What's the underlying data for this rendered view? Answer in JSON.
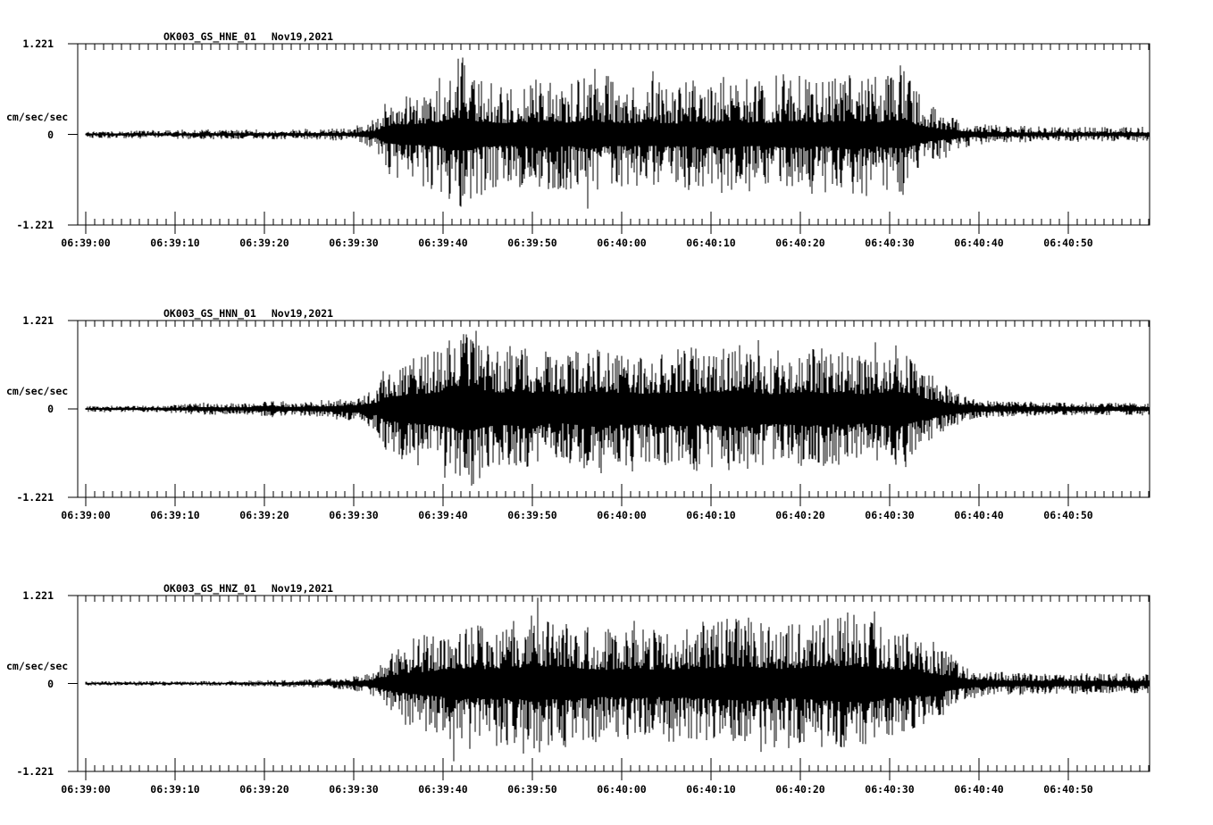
{
  "figure": {
    "background": "#ffffff",
    "ink": "#000000"
  },
  "chart_data": {
    "type": "line",
    "subtype": "seismogram-3-panel",
    "grid": false,
    "legend": "none",
    "y_axis": {
      "unit_label": "cm/sec/sec",
      "max_label": "1.221",
      "zero_label": "0",
      "min_label": "-1.221",
      "max_value": 1.221
    },
    "time_axis": {
      "major_tick_seconds": 10,
      "minor_tick_seconds": 1,
      "duration_seconds": 119,
      "tick_labels": [
        "06:39:00",
        "06:39:10",
        "06:39:20",
        "06:39:30",
        "06:39:40",
        "06:39:50",
        "06:40:00",
        "06:40:10",
        "06:40:20",
        "06:40:30",
        "06:40:40",
        "06:40:50"
      ]
    },
    "panels": [
      {
        "station_channel": "OK003_GS_HNE_01",
        "date": "Nov19,2021",
        "seed": 7,
        "texture": {
          "body_min": 0.22,
          "body_pow": 2.1,
          "spike_prob": 0.04
        },
        "envelope": [
          [
            0,
            0.05
          ],
          [
            10,
            0.055
          ],
          [
            14,
            0.07
          ],
          [
            17,
            0.06
          ],
          [
            20,
            0.07
          ],
          [
            23,
            0.065
          ],
          [
            26,
            0.075
          ],
          [
            29,
            0.09
          ],
          [
            31,
            0.12
          ],
          [
            32.5,
            0.22
          ],
          [
            33.5,
            0.5
          ],
          [
            35,
            0.62
          ],
          [
            37,
            0.6
          ],
          [
            39,
            0.7
          ],
          [
            41,
            0.95
          ],
          [
            42.5,
            1.0
          ],
          [
            44,
            0.78
          ],
          [
            47,
            0.68
          ],
          [
            50,
            0.75
          ],
          [
            52,
            0.8
          ],
          [
            54,
            0.7
          ],
          [
            56,
            0.88
          ],
          [
            58,
            0.75
          ],
          [
            61,
            0.68
          ],
          [
            63,
            0.72
          ],
          [
            66,
            0.65
          ],
          [
            68,
            0.78
          ],
          [
            70,
            0.72
          ],
          [
            72,
            0.85
          ],
          [
            74,
            0.72
          ],
          [
            76,
            0.68
          ],
          [
            78,
            0.75
          ],
          [
            80,
            0.82
          ],
          [
            82,
            0.72
          ],
          [
            84,
            0.75
          ],
          [
            86,
            0.88
          ],
          [
            88,
            0.72
          ],
          [
            90,
            0.8
          ],
          [
            91.5,
            0.88
          ],
          [
            93,
            0.6
          ],
          [
            94.5,
            0.42
          ],
          [
            96,
            0.3
          ],
          [
            98,
            0.2
          ],
          [
            100,
            0.14
          ],
          [
            103,
            0.11
          ],
          [
            107,
            0.1
          ],
          [
            119,
            0.095
          ]
        ],
        "spikes": [
          [
            41.7,
            1.02
          ],
          [
            41.9,
            -0.93
          ],
          [
            56.2,
            -1.0
          ],
          [
            63.5,
            0.85
          ],
          [
            91.2,
            0.93
          ]
        ]
      },
      {
        "station_channel": "OK003_GS_HNN_01",
        "date": "Nov19,2021",
        "seed": 23,
        "texture": {
          "body_min": 0.28,
          "body_pow": 1.8,
          "spike_prob": 0.05
        },
        "envelope": [
          [
            0,
            0.04
          ],
          [
            8,
            0.045
          ],
          [
            11,
            0.06
          ],
          [
            13,
            0.09
          ],
          [
            15,
            0.07
          ],
          [
            18,
            0.08
          ],
          [
            21,
            0.11
          ],
          [
            23,
            0.09
          ],
          [
            25,
            0.1
          ],
          [
            27,
            0.12
          ],
          [
            29,
            0.15
          ],
          [
            31,
            0.2
          ],
          [
            32.5,
            0.3
          ],
          [
            33.5,
            0.55
          ],
          [
            36,
            0.7
          ],
          [
            38,
            0.75
          ],
          [
            40,
            0.85
          ],
          [
            42,
            1.0
          ],
          [
            43.5,
            1.05
          ],
          [
            45,
            0.85
          ],
          [
            47,
            0.8
          ],
          [
            49,
            0.85
          ],
          [
            51,
            0.75
          ],
          [
            53,
            0.7
          ],
          [
            55,
            0.78
          ],
          [
            57,
            0.85
          ],
          [
            59,
            0.75
          ],
          [
            61,
            0.8
          ],
          [
            63,
            0.72
          ],
          [
            65,
            0.78
          ],
          [
            67,
            0.85
          ],
          [
            69,
            0.75
          ],
          [
            71,
            0.82
          ],
          [
            73,
            0.9
          ],
          [
            75,
            0.78
          ],
          [
            77,
            0.72
          ],
          [
            79,
            0.78
          ],
          [
            81,
            0.85
          ],
          [
            83,
            0.75
          ],
          [
            85,
            0.8
          ],
          [
            87,
            0.72
          ],
          [
            89,
            0.78
          ],
          [
            91,
            0.82
          ],
          [
            92.5,
            0.68
          ],
          [
            94,
            0.5
          ],
          [
            96,
            0.32
          ],
          [
            98,
            0.2
          ],
          [
            100,
            0.13
          ],
          [
            104,
            0.1
          ],
          [
            108,
            0.09
          ],
          [
            119,
            0.085
          ]
        ],
        "spikes": [
          [
            40.2,
            -0.95
          ],
          [
            42.6,
            1.03
          ],
          [
            43.2,
            -1.06
          ],
          [
            75.3,
            0.95
          ],
          [
            88.4,
            0.92
          ]
        ]
      },
      {
        "station_channel": "OK003_GS_HNZ_01",
        "date": "Nov19,2021",
        "seed": 41,
        "texture": {
          "body_min": 0.25,
          "body_pow": 1.9,
          "spike_prob": 0.045
        },
        "envelope": [
          [
            0,
            0.03
          ],
          [
            10,
            0.032
          ],
          [
            15,
            0.035
          ],
          [
            20,
            0.045
          ],
          [
            24,
            0.055
          ],
          [
            27,
            0.07
          ],
          [
            30,
            0.1
          ],
          [
            32,
            0.18
          ],
          [
            33.5,
            0.35
          ],
          [
            35,
            0.5
          ],
          [
            37,
            0.6
          ],
          [
            39,
            0.68
          ],
          [
            41,
            0.8
          ],
          [
            43,
            0.85
          ],
          [
            45,
            0.78
          ],
          [
            47,
            0.8
          ],
          [
            49,
            0.9
          ],
          [
            50.5,
            1.0
          ],
          [
            52,
            0.85
          ],
          [
            54,
            0.9
          ],
          [
            56,
            0.8
          ],
          [
            58,
            0.75
          ],
          [
            60,
            0.78
          ],
          [
            62,
            0.82
          ],
          [
            64,
            0.75
          ],
          [
            66,
            0.78
          ],
          [
            68,
            0.8
          ],
          [
            70,
            0.85
          ],
          [
            72,
            0.9
          ],
          [
            74,
            0.95
          ],
          [
            76,
            0.85
          ],
          [
            78,
            0.8
          ],
          [
            80,
            0.85
          ],
          [
            82,
            0.9
          ],
          [
            84,
            0.95
          ],
          [
            86,
            1.0
          ],
          [
            88,
            0.85
          ],
          [
            90,
            0.8
          ],
          [
            92,
            0.72
          ],
          [
            94,
            0.6
          ],
          [
            96,
            0.45
          ],
          [
            97.5,
            0.32
          ],
          [
            99,
            0.22
          ],
          [
            101,
            0.17
          ],
          [
            104,
            0.15
          ],
          [
            110,
            0.14
          ],
          [
            119,
            0.135
          ]
        ],
        "spikes": [
          [
            41.2,
            -1.08
          ],
          [
            50.2,
            -0.9
          ],
          [
            50.6,
            1.19
          ],
          [
            75.6,
            -0.95
          ],
          [
            88.3,
            1.0
          ]
        ]
      }
    ]
  }
}
